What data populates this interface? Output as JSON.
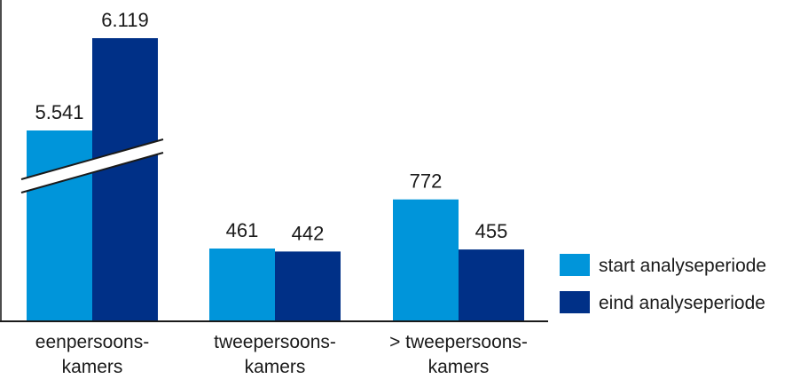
{
  "chart_data": {
    "type": "bar",
    "categories": [
      [
        "eenpersoons-",
        "kamers"
      ],
      [
        "tweepersoons-",
        "kamers"
      ],
      [
        "> tweepersoons-",
        "kamers"
      ]
    ],
    "series": [
      {
        "name": "start analyseperiode",
        "color": "#0095DA",
        "values": [
          5541,
          461,
          772
        ],
        "labels": [
          "5.541",
          "461",
          "772"
        ]
      },
      {
        "name": "eind analyseperiode",
        "color": "#003087",
        "values": [
          6119,
          442,
          455
        ],
        "labels": [
          "6.119",
          "442",
          "455"
        ]
      }
    ],
    "axis_break": true,
    "legend_position": "right",
    "grid": false
  }
}
